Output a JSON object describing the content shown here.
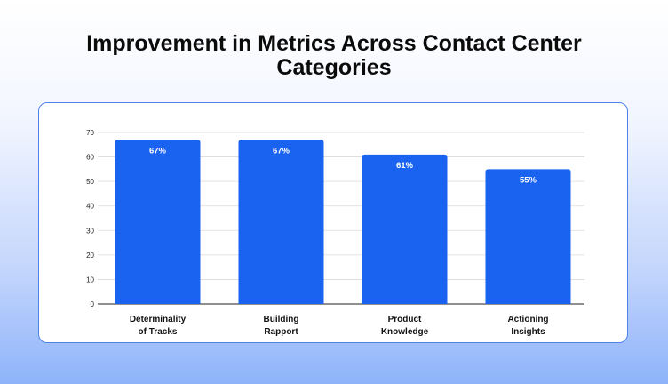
{
  "page": {
    "title_lines": [
      "Improvement in Metrics Across Contact Center",
      "Categories"
    ]
  },
  "chart_data": {
    "type": "bar",
    "title": "Improvement in Metrics Across Contact Center Categories",
    "categories": [
      [
        "Determinality",
        "of Tracks"
      ],
      [
        "Building",
        "Rapport"
      ],
      [
        "Product",
        "Knowledge"
      ],
      [
        "Actioning",
        "Insights"
      ]
    ],
    "values": [
      67,
      67,
      61,
      55
    ],
    "data_labels": [
      "67%",
      "67%",
      "61%",
      "55%"
    ],
    "xlabel": "",
    "ylabel": "",
    "ylim": [
      0,
      70
    ],
    "yticks": [
      0,
      10,
      20,
      30,
      40,
      50,
      60,
      70
    ],
    "grid": true,
    "legend": "none",
    "colors": {
      "bar": "#1a63f0",
      "grid": "#d9d9d9",
      "axis": "#222222"
    }
  }
}
